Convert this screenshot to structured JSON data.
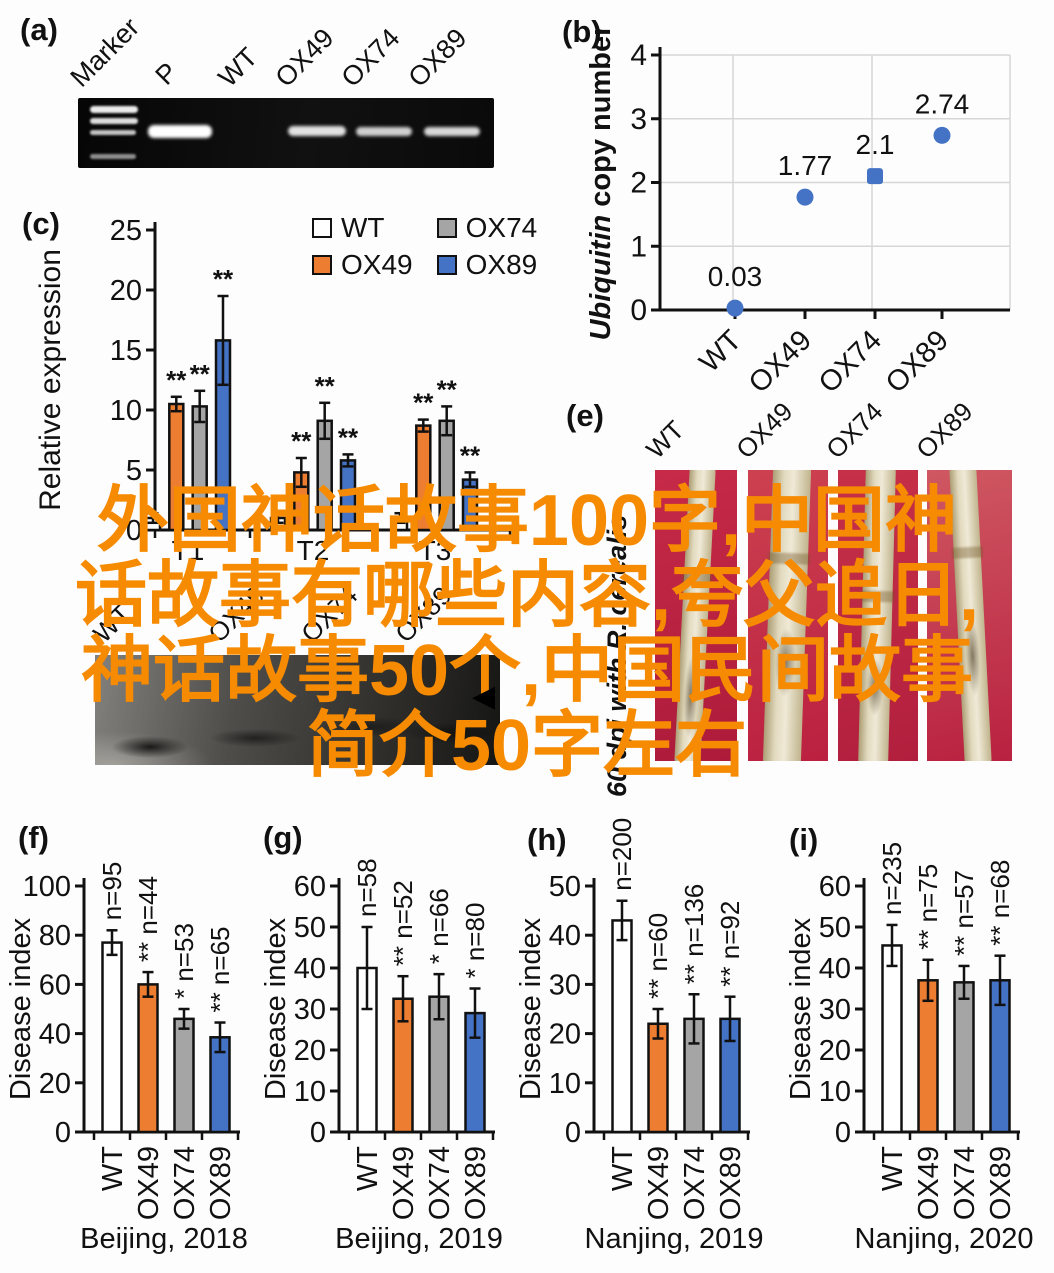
{
  "figure": {
    "panel_labels": {
      "a": "(a)",
      "b": "(b)",
      "c": "(c)",
      "e": "(e)",
      "f": "(f)",
      "g": "(g)",
      "h": "(h)",
      "i": "(i)"
    }
  },
  "overlay": {
    "color": "#F68A00",
    "lines": [
      "外国神话故事100字,中国神",
      "话故事有哪些内容,夸父追日,",
      "神话故事50个,中国民间故事",
      "简介50字左右"
    ]
  },
  "panel_a": {
    "lanes": [
      "Marker",
      "P",
      "WT",
      "OX49",
      "OX74",
      "OX89"
    ]
  },
  "panel_d": {
    "lanes": [
      "WT",
      "OX49",
      "OX74",
      "OX89"
    ],
    "arrow": "◀"
  },
  "panel_e": {
    "lanes": [
      "WT",
      "OX49",
      "OX74",
      "OX89"
    ],
    "side_label": "60 dpi with R. cerealis"
  },
  "colors": {
    "wt": "#FFFFFF",
    "ox49": "#ED7D31",
    "ox74": "#A5A5A5",
    "ox89": "#4472C4",
    "axis": "#111111",
    "grid": "#D6D6D6"
  },
  "chart_data": [
    {
      "id": "b",
      "type": "scatter",
      "ylabel_italic": "Ubiquitin",
      "ylabel_rest": " copy number",
      "categories": [
        "WT",
        "OX49",
        "OX74",
        "OX89"
      ],
      "values": [
        0.03,
        1.77,
        2.1,
        2.74
      ],
      "point_labels": [
        "0.03",
        "1.77",
        "2.1",
        "2.74"
      ],
      "markers": [
        "circle",
        "circle",
        "square",
        "circle"
      ],
      "point_color": "#4472C4",
      "ylim": [
        0,
        4
      ],
      "yticks": [
        0,
        1,
        2,
        3,
        4
      ],
      "grid": true
    },
    {
      "id": "c",
      "type": "grouped-bar",
      "ylabel": "Relative expression",
      "categories": [
        "T1",
        "T2",
        "T3"
      ],
      "ylim": [
        0,
        25
      ],
      "yticks": [
        0,
        5,
        10,
        15,
        20,
        25
      ],
      "series": [
        {
          "name": "WT",
          "color": "#FFFFFF",
          "values": [
            1,
            1,
            1
          ],
          "errors": [
            0.4,
            0.4,
            0.4
          ],
          "sig": [
            "",
            "",
            ""
          ]
        },
        {
          "name": "OX49",
          "color": "#ED7D31",
          "values": [
            10.5,
            4.8,
            8.7
          ],
          "errors": [
            0.6,
            1.2,
            0.5
          ],
          "sig": [
            "**",
            "**",
            "**"
          ]
        },
        {
          "name": "OX74",
          "color": "#A5A5A5",
          "values": [
            10.3,
            9.1,
            9.1
          ],
          "errors": [
            1.3,
            1.5,
            1.2
          ],
          "sig": [
            "**",
            "**",
            "**"
          ]
        },
        {
          "name": "OX89",
          "color": "#4472C4",
          "values": [
            15.8,
            5.8,
            4.2
          ],
          "errors": [
            3.7,
            0.5,
            0.6
          ],
          "sig": [
            "**",
            "**",
            "**"
          ]
        }
      ],
      "legend": [
        {
          "label": "WT",
          "color": "#FFFFFF"
        },
        {
          "label": "OX74",
          "color": "#A5A5A5"
        },
        {
          "label": "OX49",
          "color": "#ED7D31"
        },
        {
          "label": "OX89",
          "color": "#4472C4"
        }
      ]
    },
    {
      "id": "f",
      "type": "bar",
      "ylabel": "Disease index",
      "caption": "Beijing, 2018",
      "categories": [
        "WT",
        "OX49",
        "OX74",
        "OX89"
      ],
      "values": [
        77,
        60,
        46,
        38.5
      ],
      "errors": [
        5,
        5,
        4,
        6
      ],
      "annotations": [
        "n=95",
        "** n=44",
        "* n=53",
        "** n=65"
      ],
      "colors": [
        "#FFFFFF",
        "#ED7D31",
        "#A5A5A5",
        "#4472C4"
      ],
      "ylim": [
        0,
        100
      ],
      "yticks": [
        0,
        20,
        40,
        60,
        80,
        100
      ]
    },
    {
      "id": "g",
      "type": "bar",
      "ylabel": "Disease index",
      "caption": "Beijing, 2019",
      "categories": [
        "WT",
        "OX49",
        "OX74",
        "OX89"
      ],
      "values": [
        40,
        32.5,
        33,
        29
      ],
      "errors": [
        10,
        5.5,
        5.5,
        6
      ],
      "annotations": [
        "n=58",
        "** n=52",
        "* n=66",
        "* n=80"
      ],
      "colors": [
        "#FFFFFF",
        "#ED7D31",
        "#A5A5A5",
        "#4472C4"
      ],
      "ylim": [
        0,
        60
      ],
      "yticks": [
        0,
        10,
        20,
        30,
        40,
        50,
        60
      ]
    },
    {
      "id": "h",
      "type": "bar",
      "ylabel": "Disease index",
      "caption": "Nanjing, 2019",
      "categories": [
        "WT",
        "OX49",
        "OX74",
        "OX89"
      ],
      "values": [
        43,
        22,
        23,
        23
      ],
      "errors": [
        4,
        3,
        5,
        4.5
      ],
      "annotations": [
        "n=200",
        "** n=60",
        "** n=136",
        "** n=92"
      ],
      "colors": [
        "#FFFFFF",
        "#ED7D31",
        "#A5A5A5",
        "#4472C4"
      ],
      "ylim": [
        0,
        50
      ],
      "yticks": [
        0,
        10,
        20,
        30,
        40,
        50
      ]
    },
    {
      "id": "i",
      "type": "bar",
      "ylabel": "Disease index",
      "caption": "Nanjing, 2020",
      "categories": [
        "WT",
        "OX49",
        "OX74",
        "OX89"
      ],
      "values": [
        45.5,
        37,
        36.5,
        37
      ],
      "errors": [
        5,
        5,
        4,
        6
      ],
      "annotations": [
        "n=235",
        "** n=75",
        "** n=57",
        "** n=68"
      ],
      "colors": [
        "#FFFFFF",
        "#ED7D31",
        "#A5A5A5",
        "#4472C4"
      ],
      "ylim": [
        0,
        60
      ],
      "yticks": [
        0,
        10,
        20,
        30,
        40,
        50,
        60
      ]
    }
  ]
}
